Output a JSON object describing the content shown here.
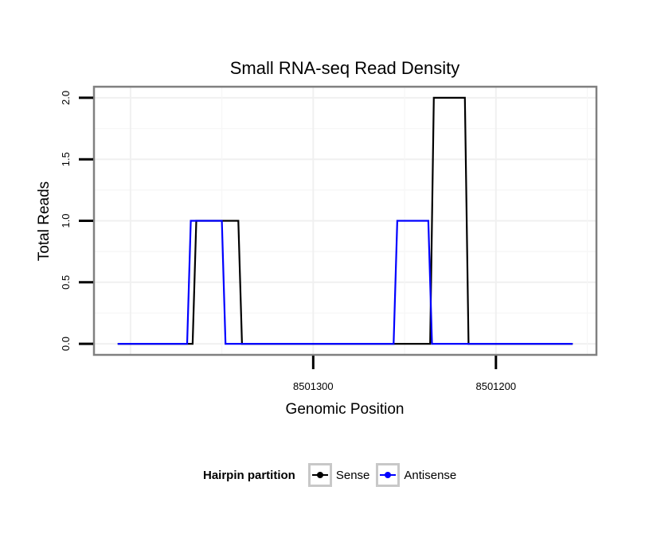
{
  "chart_data": {
    "type": "line",
    "title": "Small RNA-seq Read Density",
    "xlabel": "Genomic Position",
    "ylabel": "Total Reads",
    "x_reversed": true,
    "xlim": [
      8501420,
      8501145
    ],
    "ylim": [
      -0.09,
      2.09
    ],
    "x_ticks": [
      8501300,
      8501200
    ],
    "x_tick_labels": [
      "8501300",
      "8501200"
    ],
    "y_ticks": [
      0.0,
      0.5,
      1.0,
      1.5,
      2.0
    ],
    "y_tick_labels": [
      "0.0",
      "0.5",
      "1.0",
      "1.5",
      "2.0"
    ],
    "grid": true,
    "legend_position": "bottom",
    "legend_title": "Hairpin partition",
    "series": [
      {
        "name": "Sense",
        "color": "#000000",
        "x": [
          8501407,
          8501366,
          8501364,
          8501341,
          8501339,
          8501236,
          8501234,
          8501217,
          8501215,
          8501158
        ],
        "y": [
          0,
          0,
          1,
          1,
          0,
          0,
          2,
          2,
          0,
          0
        ]
      },
      {
        "name": "Antisense",
        "color": "#0000ff",
        "x": [
          8501407,
          8501369,
          8501367,
          8501350,
          8501348,
          8501256,
          8501254,
          8501237,
          8501235,
          8501158
        ],
        "y": [
          0,
          0,
          1,
          1,
          0,
          0,
          1,
          1,
          0,
          0
        ]
      }
    ]
  }
}
